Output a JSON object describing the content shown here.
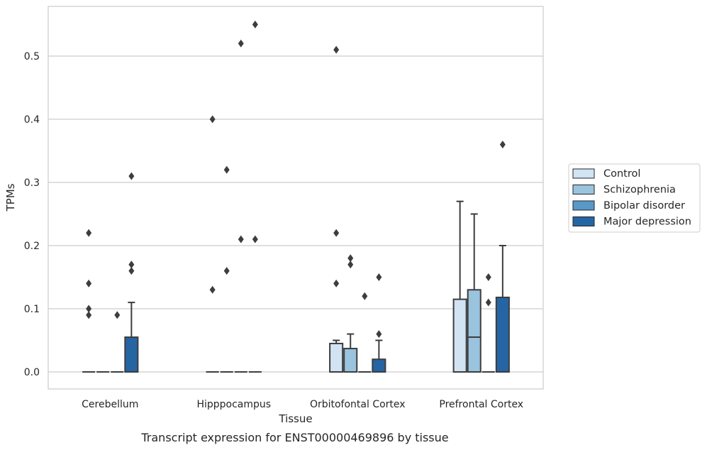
{
  "chart_data": {
    "type": "box",
    "xlabel": "Tissue",
    "ylabel": "TPMs",
    "caption": "Transcript expression for ENST00000469896 by tissue",
    "ylim": [
      -0.027,
      0.58
    ],
    "yticks": [
      0.0,
      0.1,
      0.2,
      0.3,
      0.4,
      0.5
    ],
    "ytick_labels": [
      "0.0",
      "0.1",
      "0.2",
      "0.3",
      "0.4",
      "0.5"
    ],
    "categories": [
      "Cerebellum",
      "Hipppocampus",
      "Orbitofontal Cortex",
      "Prefrontal Cortex"
    ],
    "grid": true,
    "legend_position": "right",
    "series": [
      {
        "name": "Control",
        "color": "#d2e3f3",
        "boxes": [
          {
            "q1": 0,
            "median": 0,
            "q3": 0,
            "whislo": 0,
            "whishi": 0,
            "fliers": [
              0.1,
              0.09,
              0.22,
              0.14
            ]
          },
          {
            "q1": 0,
            "median": 0,
            "q3": 0,
            "whislo": 0,
            "whishi": 0,
            "fliers": [
              0.4,
              0.13
            ]
          },
          {
            "q1": 0,
            "median": 0,
            "q3": 0.045,
            "whislo": 0,
            "whishi": 0.05,
            "fliers": [
              0.51,
              0.22,
              0.14
            ]
          },
          {
            "q1": 0,
            "median": 0,
            "q3": 0.115,
            "whislo": 0,
            "whishi": 0.27,
            "fliers": []
          }
        ]
      },
      {
        "name": "Schizophrenia",
        "color": "#9ac3de",
        "boxes": [
          {
            "q1": 0,
            "median": 0,
            "q3": 0,
            "whislo": 0,
            "whishi": 0,
            "fliers": []
          },
          {
            "q1": 0,
            "median": 0,
            "q3": 0,
            "whislo": 0,
            "whishi": 0,
            "fliers": [
              0.32,
              0.16
            ]
          },
          {
            "q1": 0,
            "median": 0,
            "q3": 0.037,
            "whislo": 0,
            "whishi": 0.06,
            "fliers": [
              0.18,
              0.17
            ]
          },
          {
            "q1": 0,
            "median": 0.055,
            "q3": 0.13,
            "whislo": 0,
            "whishi": 0.25,
            "fliers": []
          }
        ]
      },
      {
        "name": "Bipolar disorder",
        "color": "#5899c8",
        "boxes": [
          {
            "q1": 0,
            "median": 0,
            "q3": 0,
            "whislo": 0,
            "whishi": 0,
            "fliers": [
              0.09
            ]
          },
          {
            "q1": 0,
            "median": 0,
            "q3": 0,
            "whislo": 0,
            "whishi": 0,
            "fliers": [
              0.52,
              0.21
            ]
          },
          {
            "q1": 0,
            "median": 0,
            "q3": 0,
            "whislo": 0,
            "whishi": 0,
            "fliers": [
              0.12
            ]
          },
          {
            "q1": 0,
            "median": 0,
            "q3": 0,
            "whislo": 0,
            "whishi": 0,
            "fliers": [
              0.15,
              0.11
            ]
          }
        ]
      },
      {
        "name": "Major depression",
        "color": "#2565a4",
        "boxes": [
          {
            "q1": 0,
            "median": 0,
            "q3": 0.055,
            "whislo": 0,
            "whishi": 0.11,
            "fliers": [
              0.31,
              0.17,
              0.16
            ]
          },
          {
            "q1": 0,
            "median": 0,
            "q3": 0,
            "whislo": 0,
            "whishi": 0,
            "fliers": [
              0.55,
              0.21
            ]
          },
          {
            "q1": 0,
            "median": 0,
            "q3": 0.02,
            "whislo": 0,
            "whishi": 0.05,
            "fliers": [
              0.15,
              0.06
            ]
          },
          {
            "q1": 0,
            "median": 0,
            "q3": 0.118,
            "whislo": 0,
            "whishi": 0.2,
            "fliers": [
              0.36
            ]
          }
        ]
      }
    ]
  }
}
